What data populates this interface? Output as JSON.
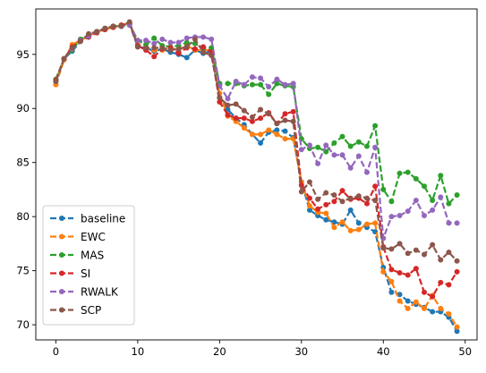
{
  "chart_data": {
    "type": "line",
    "xlim": [
      -2.45,
      51.45
    ],
    "ylim": [
      68.6,
      99.2
    ],
    "xticks": [
      0,
      10,
      20,
      30,
      40,
      50
    ],
    "yticks": [
      70,
      75,
      80,
      85,
      90,
      95
    ],
    "legend_position": "lower-left",
    "grid": false,
    "line_style": "dashed, circle markers",
    "x": [
      0,
      1,
      2,
      3,
      4,
      5,
      6,
      7,
      8,
      9,
      10,
      11,
      12,
      13,
      14,
      15,
      16,
      17,
      18,
      19,
      20,
      21,
      22,
      23,
      24,
      25,
      26,
      27,
      28,
      29,
      30,
      31,
      32,
      33,
      34,
      35,
      36,
      37,
      38,
      39,
      40,
      41,
      42,
      43,
      44,
      45,
      46,
      47,
      48,
      49
    ],
    "series": [
      {
        "name": "baseline",
        "color": "#1f77b4",
        "values": [
          92.5,
          94.6,
          95.3,
          96.2,
          96.6,
          97.0,
          97.3,
          97.5,
          97.6,
          97.8,
          95.7,
          95.6,
          95.3,
          95.5,
          95.2,
          95.0,
          94.7,
          95.4,
          95.1,
          95.3,
          91.0,
          89.9,
          89.1,
          88.5,
          87.6,
          86.8,
          87.8,
          88.0,
          87.9,
          87.3,
          83.2,
          80.6,
          80.1,
          79.7,
          79.5,
          79.3,
          80.6,
          79.4,
          79.0,
          78.6,
          75.3,
          73.0,
          72.8,
          72.2,
          71.9,
          71.6,
          71.2,
          71.2,
          70.7,
          69.4
        ]
      },
      {
        "name": "EWC",
        "color": "#ff7f0e",
        "values": [
          92.2,
          94.5,
          95.9,
          96.3,
          96.7,
          97.1,
          97.3,
          97.5,
          97.7,
          97.9,
          95.9,
          95.6,
          95.4,
          95.4,
          95.6,
          95.4,
          95.8,
          95.4,
          95.4,
          95.4,
          91.4,
          89.3,
          88.8,
          88.2,
          87.6,
          87.6,
          88.0,
          87.6,
          87.2,
          87.2,
          83.2,
          81.0,
          80.4,
          80.3,
          79.0,
          79.5,
          78.7,
          78.8,
          79.3,
          79.4,
          74.9,
          74.0,
          72.2,
          71.5,
          72.1,
          71.5,
          72.7,
          71.5,
          71.0,
          69.8
        ]
      },
      {
        "name": "MAS",
        "color": "#2ca02c",
        "values": [
          92.7,
          94.6,
          95.4,
          96.4,
          96.8,
          97.1,
          97.4,
          97.6,
          97.7,
          97.8,
          96.3,
          95.9,
          96.5,
          95.8,
          95.7,
          95.8,
          96.1,
          96.0,
          95.6,
          95.6,
          92.3,
          92.3,
          92.3,
          92.1,
          92.2,
          92.2,
          91.3,
          92.3,
          92.1,
          92.0,
          87.2,
          86.3,
          86.4,
          86.0,
          86.8,
          87.4,
          86.5,
          86.9,
          86.5,
          88.4,
          82.5,
          81.4,
          84.0,
          84.1,
          83.5,
          82.8,
          81.5,
          83.8,
          81.2,
          82.0
        ]
      },
      {
        "name": "SI",
        "color": "#d62728",
        "values": [
          92.6,
          94.6,
          95.7,
          96.3,
          96.6,
          97.0,
          97.3,
          97.5,
          97.7,
          97.9,
          95.8,
          95.4,
          94.8,
          95.5,
          95.6,
          95.1,
          95.6,
          95.5,
          95.7,
          95.2,
          90.6,
          89.4,
          89.1,
          89.1,
          88.8,
          89.1,
          89.6,
          88.6,
          89.5,
          89.7,
          82.9,
          81.7,
          80.7,
          81.1,
          81.4,
          82.4,
          81.6,
          81.7,
          81.2,
          82.8,
          77.2,
          75.1,
          74.8,
          74.6,
          75.2,
          73.0,
          72.6,
          73.9,
          73.7,
          74.9
        ]
      },
      {
        "name": "RWALK",
        "color": "#9467bd",
        "values": [
          92.5,
          94.6,
          95.5,
          96.3,
          96.7,
          97.1,
          97.4,
          97.6,
          97.6,
          97.7,
          96.3,
          96.3,
          96.0,
          96.4,
          96.1,
          96.1,
          96.5,
          96.6,
          96.6,
          96.4,
          92.1,
          90.9,
          92.5,
          92.2,
          92.9,
          92.8,
          92.0,
          92.7,
          92.2,
          92.3,
          86.2,
          86.6,
          84.9,
          86.6,
          85.7,
          85.7,
          84.5,
          85.6,
          84.1,
          86.4,
          78.0,
          80.0,
          80.1,
          80.5,
          81.5,
          80.1,
          80.6,
          81.8,
          79.4,
          79.4
        ]
      },
      {
        "name": "SCP",
        "color": "#8c564b",
        "values": [
          92.5,
          94.6,
          95.6,
          96.2,
          96.9,
          97.1,
          97.4,
          97.6,
          97.6,
          98.0,
          95.7,
          95.6,
          95.6,
          95.6,
          95.4,
          95.5,
          95.7,
          96.4,
          95.2,
          94.9,
          91.0,
          90.3,
          90.4,
          89.8,
          89.2,
          89.9,
          89.5,
          88.6,
          88.9,
          88.8,
          82.3,
          83.2,
          81.6,
          82.2,
          82.0,
          81.4,
          81.7,
          81.9,
          81.7,
          81.5,
          77.1,
          77.0,
          77.5,
          76.6,
          76.9,
          76.5,
          77.4,
          76.0,
          76.7,
          75.9
        ]
      }
    ]
  }
}
